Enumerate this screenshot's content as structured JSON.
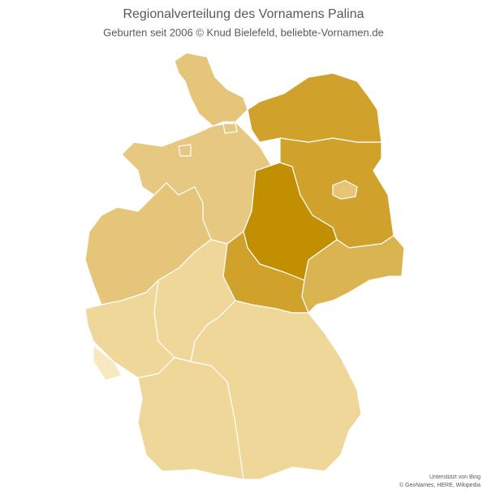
{
  "header": {
    "title": "Regionalverteilung des Vornamens Palina",
    "subtitle": "Geburten  seit 2006  © Knud  Bielefeld, beliebte-Vornamen.de"
  },
  "attribution": {
    "line1": "Unterstützt von Bing",
    "line2": "© GeoNames, HERE, Wikipedia"
  }
}
